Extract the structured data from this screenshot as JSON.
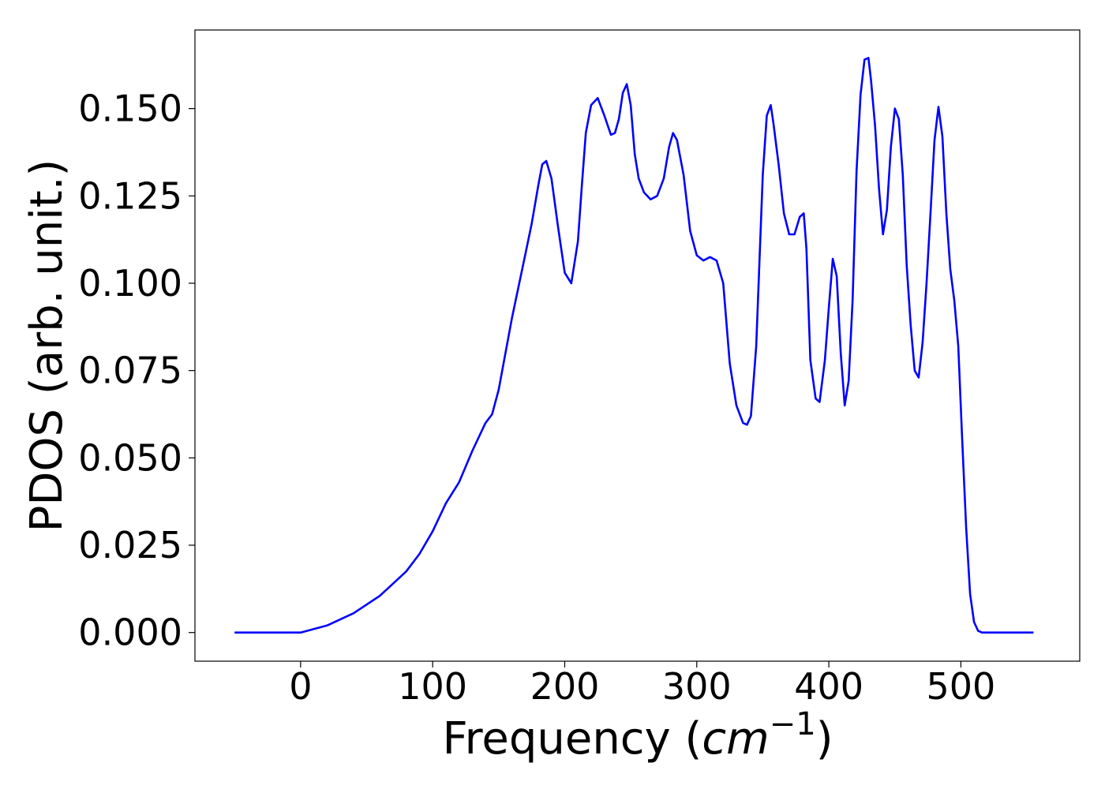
{
  "chart_data": {
    "type": "line",
    "title": "",
    "xlabel": "Frequency (",
    "xlabel_math": "cm",
    "xlabel_sup": "−1",
    "xlabel_close": ")",
    "ylabel": "PDOS (arb. unit.)",
    "xlim": [
      -80,
      590
    ],
    "ylim": [
      -0.0082,
      0.1725
    ],
    "xticks": [
      0,
      100,
      200,
      300,
      400,
      500
    ],
    "xtick_labels": [
      "0",
      "100",
      "200",
      "300",
      "400",
      "500"
    ],
    "yticks": [
      0.0,
      0.025,
      0.05,
      0.075,
      0.1,
      0.125,
      0.15
    ],
    "ytick_labels": [
      "0.000",
      "0.025",
      "0.050",
      "0.075",
      "0.100",
      "0.125",
      "0.150"
    ],
    "grid": false,
    "legend": false,
    "series": [
      {
        "color": "#0000ff",
        "x": [
          -50,
          0,
          20,
          40,
          60,
          80,
          90,
          100,
          110,
          120,
          130,
          140,
          145,
          150,
          160,
          170,
          175,
          180,
          183,
          186,
          190,
          195,
          200,
          205,
          210,
          213,
          216,
          220,
          225,
          230,
          235,
          238,
          241,
          244,
          247,
          250,
          253,
          256,
          260,
          265,
          270,
          275,
          279,
          282,
          285,
          290,
          295,
          300,
          305,
          310,
          315,
          320,
          325,
          330,
          335,
          338,
          341,
          345,
          350,
          353,
          356,
          358,
          362,
          366,
          370,
          374,
          378,
          381,
          383,
          386,
          390,
          393,
          397,
          400,
          403,
          406,
          409,
          412,
          415,
          418,
          421,
          424,
          427,
          430,
          432,
          435,
          438,
          441,
          444,
          447,
          450,
          453,
          456,
          459,
          462,
          465,
          468,
          471,
          474,
          477,
          480,
          483,
          486,
          489,
          492,
          495,
          498,
          501,
          504,
          507,
          510,
          513,
          516,
          520,
          525,
          530,
          540,
          555
        ],
        "y": [
          0.0,
          0.0,
          0.002,
          0.0055,
          0.0105,
          0.0175,
          0.0225,
          0.029,
          0.037,
          0.043,
          0.052,
          0.06,
          0.0625,
          0.0695,
          0.09,
          0.108,
          0.117,
          0.128,
          0.134,
          0.135,
          0.13,
          0.116,
          0.103,
          0.1,
          0.112,
          0.128,
          0.143,
          0.151,
          0.153,
          0.148,
          0.1425,
          0.143,
          0.147,
          0.1545,
          0.157,
          0.151,
          0.137,
          0.13,
          0.126,
          0.124,
          0.125,
          0.13,
          0.139,
          0.143,
          0.141,
          0.131,
          0.115,
          0.108,
          0.1065,
          0.1075,
          0.1065,
          0.1,
          0.077,
          0.065,
          0.06,
          0.0595,
          0.062,
          0.082,
          0.131,
          0.148,
          0.151,
          0.146,
          0.134,
          0.12,
          0.114,
          0.114,
          0.119,
          0.12,
          0.11,
          0.078,
          0.067,
          0.066,
          0.078,
          0.093,
          0.107,
          0.102,
          0.08,
          0.065,
          0.072,
          0.095,
          0.132,
          0.154,
          0.164,
          0.1645,
          0.158,
          0.145,
          0.127,
          0.114,
          0.121,
          0.139,
          0.15,
          0.147,
          0.131,
          0.105,
          0.088,
          0.075,
          0.073,
          0.083,
          0.1,
          0.12,
          0.141,
          0.1505,
          0.142,
          0.12,
          0.104,
          0.095,
          0.082,
          0.055,
          0.03,
          0.011,
          0.003,
          0.0005,
          0.0,
          0.0,
          0.0,
          0.0,
          0.0,
          0.0
        ]
      }
    ]
  }
}
